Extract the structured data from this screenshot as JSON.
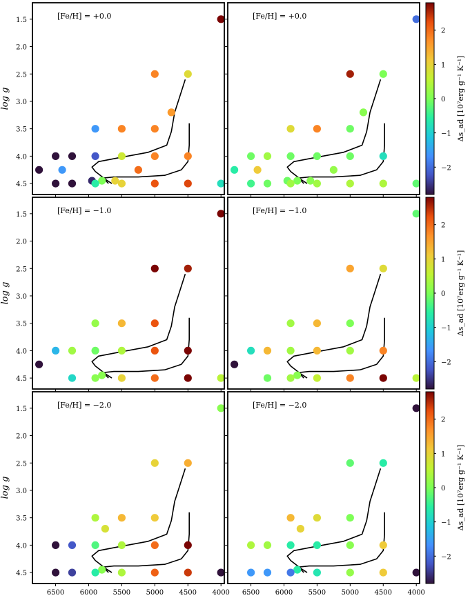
{
  "figure": {
    "ylabel": "log g",
    "colorbar_label": "Δs_ad [10⁷erg g⁻¹ K⁻¹]"
  },
  "colors": {
    "colormap": "turbo",
    "frame": "#000000",
    "track": "#000000"
  },
  "chart_data": [
    {
      "type": "scatter",
      "title": "[Fe/H] = +0.0",
      "ylabel": "log g",
      "xlim": [
        6850,
        3950
      ],
      "ylim": [
        4.7,
        1.2
      ],
      "xticks": [
        6500,
        6000,
        5500,
        5000,
        4500,
        4000
      ],
      "yticks": [
        1.5,
        2.0,
        2.5,
        3.0,
        3.5,
        4.0,
        4.5
      ],
      "clim": [
        -2.8,
        2.8
      ],
      "points": [
        {
          "x": 4000,
          "y": 1.5,
          "c": 2.8
        },
        {
          "x": 5000,
          "y": 2.5,
          "c": 1.8
        },
        {
          "x": 4500,
          "y": 2.5,
          "c": 0.9
        },
        {
          "x": 4750,
          "y": 3.2,
          "c": 1.6
        },
        {
          "x": 5900,
          "y": 3.5,
          "c": -1.6
        },
        {
          "x": 5500,
          "y": 3.5,
          "c": 1.8
        },
        {
          "x": 5000,
          "y": 3.5,
          "c": 1.8
        },
        {
          "x": 6500,
          "y": 4.0,
          "c": -2.8
        },
        {
          "x": 6250,
          "y": 4.0,
          "c": -2.8
        },
        {
          "x": 5900,
          "y": 4.0,
          "c": -2.2
        },
        {
          "x": 5500,
          "y": 4.0,
          "c": 0.7
        },
        {
          "x": 5000,
          "y": 4.0,
          "c": 1.8
        },
        {
          "x": 4500,
          "y": 4.0,
          "c": 1.8
        },
        {
          "x": 6750,
          "y": 4.25,
          "c": -2.8
        },
        {
          "x": 6400,
          "y": 4.25,
          "c": -1.6
        },
        {
          "x": 5250,
          "y": 4.25,
          "c": 2.0
        },
        {
          "x": 5950,
          "y": 4.45,
          "c": -2.6
        },
        {
          "x": 5800,
          "y": 4.45,
          "c": 0.0
        },
        {
          "x": 5600,
          "y": 4.45,
          "c": 1.0
        },
        {
          "x": 6500,
          "y": 4.5,
          "c": -2.8
        },
        {
          "x": 6250,
          "y": 4.5,
          "c": -2.8
        },
        {
          "x": 5900,
          "y": 4.5,
          "c": -0.6
        },
        {
          "x": 5500,
          "y": 4.5,
          "c": 1.0
        },
        {
          "x": 5000,
          "y": 4.5,
          "c": 2.2
        },
        {
          "x": 4500,
          "y": 4.5,
          "c": 2.3
        },
        {
          "x": 4000,
          "y": 4.5,
          "c": -0.8
        }
      ]
    },
    {
      "type": "scatter",
      "title": "[Fe/H] = +0.0",
      "xlim": [
        6850,
        3950
      ],
      "ylim": [
        4.7,
        1.2
      ],
      "xticks": [
        6500,
        6000,
        5500,
        5000,
        4500,
        4000
      ],
      "yticks": [
        1.5,
        2.0,
        2.5,
        3.0,
        3.5,
        4.0,
        4.5
      ],
      "clim": [
        -2.8,
        2.8
      ],
      "points": [
        {
          "x": 4000,
          "y": 1.5,
          "c": -2.0
        },
        {
          "x": 5000,
          "y": 2.5,
          "c": 2.6
        },
        {
          "x": 4500,
          "y": 2.5,
          "c": 0.0
        },
        {
          "x": 4800,
          "y": 3.2,
          "c": 0.1
        },
        {
          "x": 5900,
          "y": 3.5,
          "c": 0.9
        },
        {
          "x": 5500,
          "y": 3.5,
          "c": 1.8
        },
        {
          "x": 5000,
          "y": 3.5,
          "c": -0.1
        },
        {
          "x": 6500,
          "y": 4.0,
          "c": -0.1
        },
        {
          "x": 6250,
          "y": 4.0,
          "c": 0.3
        },
        {
          "x": 5900,
          "y": 4.0,
          "c": -0.1
        },
        {
          "x": 5500,
          "y": 4.0,
          "c": -0.1
        },
        {
          "x": 5000,
          "y": 4.0,
          "c": -0.1
        },
        {
          "x": 4500,
          "y": 4.0,
          "c": -0.8
        },
        {
          "x": 6750,
          "y": 4.25,
          "c": -0.6
        },
        {
          "x": 6400,
          "y": 4.25,
          "c": 1.1
        },
        {
          "x": 5250,
          "y": 4.25,
          "c": 0.2
        },
        {
          "x": 5950,
          "y": 4.45,
          "c": -0.1
        },
        {
          "x": 5800,
          "y": 4.45,
          "c": 0.0
        },
        {
          "x": 5600,
          "y": 4.45,
          "c": 0.1
        },
        {
          "x": 6500,
          "y": 4.5,
          "c": -0.4
        },
        {
          "x": 6250,
          "y": 4.5,
          "c": -0.1
        },
        {
          "x": 5900,
          "y": 4.5,
          "c": 0.3
        },
        {
          "x": 5500,
          "y": 4.5,
          "c": 0.3
        },
        {
          "x": 5000,
          "y": 4.5,
          "c": 0.4
        },
        {
          "x": 4500,
          "y": 4.5,
          "c": 0.4
        },
        {
          "x": 4000,
          "y": 4.5,
          "c": -0.2
        }
      ]
    },
    {
      "type": "scatter",
      "title": "[Fe/H] = −1.0",
      "ylabel": "log g",
      "xlim": [
        6850,
        3950
      ],
      "ylim": [
        4.7,
        1.2
      ],
      "xticks": [
        6500,
        6000,
        5500,
        5000,
        4500,
        4000
      ],
      "yticks": [
        1.5,
        2.0,
        2.5,
        3.0,
        3.5,
        4.0,
        4.5
      ],
      "clim": [
        -2.8,
        2.8
      ],
      "points": [
        {
          "x": 4000,
          "y": 1.5,
          "c": 2.8
        },
        {
          "x": 5000,
          "y": 2.5,
          "c": 2.8
        },
        {
          "x": 4500,
          "y": 2.5,
          "c": 2.6
        },
        {
          "x": 5900,
          "y": 3.5,
          "c": 0.2
        },
        {
          "x": 5500,
          "y": 3.5,
          "c": 1.3
        },
        {
          "x": 5000,
          "y": 3.5,
          "c": 2.2
        },
        {
          "x": 6500,
          "y": 4.0,
          "c": -1.3
        },
        {
          "x": 6250,
          "y": 4.0,
          "c": 0.3
        },
        {
          "x": 5900,
          "y": 4.0,
          "c": -0.1
        },
        {
          "x": 5500,
          "y": 4.0,
          "c": 0.4
        },
        {
          "x": 5000,
          "y": 4.0,
          "c": 2.2
        },
        {
          "x": 4500,
          "y": 4.0,
          "c": 2.8
        },
        {
          "x": 6750,
          "y": 4.25,
          "c": -2.8
        },
        {
          "x": 5800,
          "y": 4.45,
          "c": 0.1
        },
        {
          "x": 6250,
          "y": 4.5,
          "c": -0.9
        },
        {
          "x": 5900,
          "y": 4.5,
          "c": 0.1
        },
        {
          "x": 5500,
          "y": 4.5,
          "c": 1.0
        },
        {
          "x": 5000,
          "y": 4.5,
          "c": 2.0
        },
        {
          "x": 4500,
          "y": 4.5,
          "c": 2.8
        },
        {
          "x": 4000,
          "y": 4.5,
          "c": 0.5
        }
      ]
    },
    {
      "type": "scatter",
      "title": "[Fe/H] = −1.0",
      "xlim": [
        6850,
        3950
      ],
      "ylim": [
        4.7,
        1.2
      ],
      "xticks": [
        6500,
        6000,
        5500,
        5000,
        4500,
        4000
      ],
      "yticks": [
        1.5,
        2.0,
        2.5,
        3.0,
        3.5,
        4.0,
        4.5
      ],
      "clim": [
        -2.8,
        2.8
      ],
      "points": [
        {
          "x": 4000,
          "y": 1.5,
          "c": -0.2
        },
        {
          "x": 5000,
          "y": 2.5,
          "c": 1.5
        },
        {
          "x": 4500,
          "y": 2.5,
          "c": 0.9
        },
        {
          "x": 5900,
          "y": 3.5,
          "c": 0.3
        },
        {
          "x": 5500,
          "y": 3.5,
          "c": 1.3
        },
        {
          "x": 5000,
          "y": 3.5,
          "c": 0.0
        },
        {
          "x": 6500,
          "y": 4.0,
          "c": -0.8
        },
        {
          "x": 6250,
          "y": 4.0,
          "c": 1.3
        },
        {
          "x": 5900,
          "y": 4.0,
          "c": 0.3
        },
        {
          "x": 5500,
          "y": 4.0,
          "c": 1.3
        },
        {
          "x": 5000,
          "y": 4.0,
          "c": 0.3
        },
        {
          "x": 4500,
          "y": 4.0,
          "c": 1.8
        },
        {
          "x": 6750,
          "y": 4.25,
          "c": -2.8
        },
        {
          "x": 5800,
          "y": 4.45,
          "c": 0.1
        },
        {
          "x": 6250,
          "y": 4.5,
          "c": -0.1
        },
        {
          "x": 5900,
          "y": 4.5,
          "c": 0.3
        },
        {
          "x": 5500,
          "y": 4.5,
          "c": 0.6
        },
        {
          "x": 5000,
          "y": 4.5,
          "c": 1.8
        },
        {
          "x": 4500,
          "y": 4.5,
          "c": 2.8
        },
        {
          "x": 4000,
          "y": 4.5,
          "c": 0.5
        }
      ]
    },
    {
      "type": "scatter",
      "title": "[Fe/H] = −2.0",
      "ylabel": "log g",
      "xlim": [
        6850,
        3950
      ],
      "ylim": [
        4.7,
        1.2
      ],
      "xticks": [
        6500,
        6000,
        5500,
        5000,
        4500,
        4000
      ],
      "yticks": [
        1.5,
        2.0,
        2.5,
        3.0,
        3.5,
        4.0,
        4.5
      ],
      "clim": [
        -2.8,
        2.8
      ],
      "points": [
        {
          "x": 4000,
          "y": 1.5,
          "c": 0.1
        },
        {
          "x": 5000,
          "y": 2.5,
          "c": 1.0
        },
        {
          "x": 4500,
          "y": 2.5,
          "c": 1.4
        },
        {
          "x": 5900,
          "y": 3.5,
          "c": 0.4
        },
        {
          "x": 5500,
          "y": 3.5,
          "c": 1.3
        },
        {
          "x": 5000,
          "y": 3.5,
          "c": 1.1
        },
        {
          "x": 5750,
          "y": 3.7,
          "c": 0.8
        },
        {
          "x": 6500,
          "y": 4.0,
          "c": -2.8
        },
        {
          "x": 6250,
          "y": 4.0,
          "c": -2.2
        },
        {
          "x": 5900,
          "y": 4.0,
          "c": -0.3
        },
        {
          "x": 5500,
          "y": 4.0,
          "c": 0.4
        },
        {
          "x": 5000,
          "y": 4.0,
          "c": 2.0
        },
        {
          "x": 4500,
          "y": 4.0,
          "c": 2.8
        },
        {
          "x": 5800,
          "y": 4.45,
          "c": 0.1
        },
        {
          "x": 6500,
          "y": 4.5,
          "c": -2.8
        },
        {
          "x": 6250,
          "y": 4.5,
          "c": -2.4
        },
        {
          "x": 5900,
          "y": 4.5,
          "c": -0.6
        },
        {
          "x": 5500,
          "y": 4.5,
          "c": 0.4
        },
        {
          "x": 5000,
          "y": 4.5,
          "c": 2.1
        },
        {
          "x": 4500,
          "y": 4.5,
          "c": 2.4
        },
        {
          "x": 4000,
          "y": 4.5,
          "c": -2.8
        }
      ]
    },
    {
      "type": "scatter",
      "title": "[Fe/H] = −2.0",
      "xlim": [
        6850,
        3950
      ],
      "ylim": [
        4.7,
        1.2
      ],
      "xticks": [
        6500,
        6000,
        5500,
        5000,
        4500,
        4000
      ],
      "yticks": [
        1.5,
        2.0,
        2.5,
        3.0,
        3.5,
        4.0,
        4.5
      ],
      "clim": [
        -2.8,
        2.8
      ],
      "points": [
        {
          "x": 4000,
          "y": 1.5,
          "c": -2.8
        },
        {
          "x": 5000,
          "y": 2.5,
          "c": -0.2
        },
        {
          "x": 4500,
          "y": 2.5,
          "c": -0.6
        },
        {
          "x": 5900,
          "y": 3.5,
          "c": 1.3
        },
        {
          "x": 5500,
          "y": 3.5,
          "c": 0.9
        },
        {
          "x": 5000,
          "y": 3.5,
          "c": 0.0
        },
        {
          "x": 5750,
          "y": 3.7,
          "c": 1.0
        },
        {
          "x": 6500,
          "y": 4.0,
          "c": 0.4
        },
        {
          "x": 6250,
          "y": 4.0,
          "c": 0.3
        },
        {
          "x": 5900,
          "y": 4.0,
          "c": -0.6
        },
        {
          "x": 5500,
          "y": 4.0,
          "c": -0.6
        },
        {
          "x": 5000,
          "y": 4.0,
          "c": 0.1
        },
        {
          "x": 4500,
          "y": 4.0,
          "c": 1.1
        },
        {
          "x": 5800,
          "y": 4.45,
          "c": -0.6
        },
        {
          "x": 6500,
          "y": 4.5,
          "c": -1.6
        },
        {
          "x": 6250,
          "y": 4.5,
          "c": -1.6
        },
        {
          "x": 5900,
          "y": 4.5,
          "c": -1.9
        },
        {
          "x": 5500,
          "y": 4.5,
          "c": -0.7
        },
        {
          "x": 5000,
          "y": 4.5,
          "c": 0.2
        },
        {
          "x": 4500,
          "y": 4.5,
          "c": 1.1
        },
        {
          "x": 4000,
          "y": 4.5,
          "c": -2.8
        }
      ]
    }
  ],
  "colorbar": {
    "ticks": [
      2,
      1,
      0,
      -1,
      -2
    ],
    "tick_labels": [
      "2",
      "1",
      "0",
      "−1",
      "−2"
    ]
  }
}
